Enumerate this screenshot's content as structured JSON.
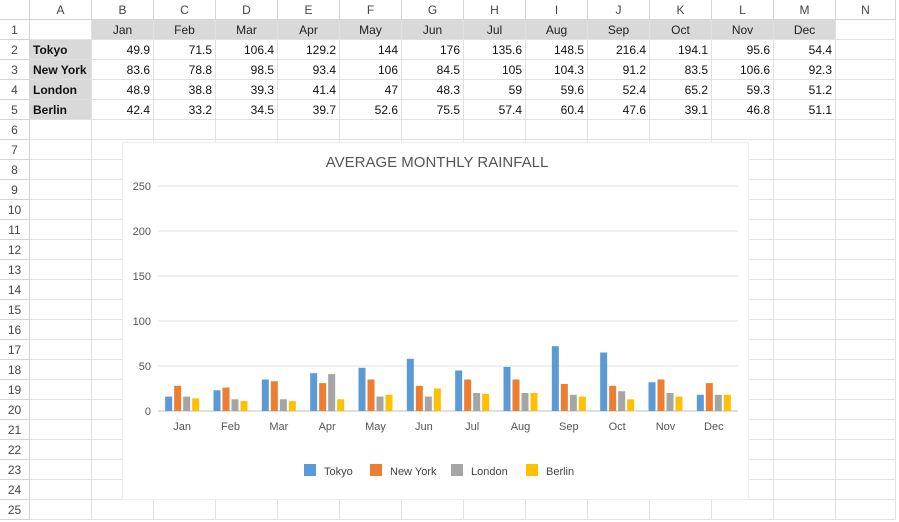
{
  "sheet": {
    "columns": [
      "A",
      "B",
      "C",
      "D",
      "E",
      "F",
      "G",
      "H",
      "I",
      "J",
      "K",
      "L",
      "M",
      "N"
    ],
    "rows": [
      "1",
      "2",
      "3",
      "4",
      "5",
      "6",
      "7",
      "8",
      "9",
      "10",
      "11",
      "12",
      "13",
      "14",
      "15",
      "16",
      "17",
      "18",
      "19",
      "20",
      "21",
      "22",
      "23",
      "24",
      "25"
    ],
    "months": [
      "Jan",
      "Feb",
      "Mar",
      "Apr",
      "May",
      "Jun",
      "Jul",
      "Aug",
      "Sep",
      "Oct",
      "Nov",
      "Dec"
    ],
    "table": [
      {
        "city": "Tokyo",
        "values": [
          "49.9",
          "71.5",
          "106.4",
          "129.2",
          "144",
          "176",
          "135.6",
          "148.5",
          "216.4",
          "194.1",
          "95.6",
          "54.4"
        ]
      },
      {
        "city": "New York",
        "values": [
          "83.6",
          "78.8",
          "98.5",
          "93.4",
          "106",
          "84.5",
          "105",
          "104.3",
          "91.2",
          "83.5",
          "106.6",
          "92.3"
        ]
      },
      {
        "city": "London",
        "values": [
          "48.9",
          "38.8",
          "39.3",
          "41.4",
          "47",
          "48.3",
          "59",
          "59.6",
          "52.4",
          "65.2",
          "59.3",
          "51.2"
        ]
      },
      {
        "city": "Berlin",
        "values": [
          "42.4",
          "33.2",
          "34.5",
          "39.7",
          "52.6",
          "75.5",
          "57.4",
          "60.4",
          "47.6",
          "39.1",
          "46.8",
          "51.1"
        ]
      }
    ]
  },
  "chart_data": {
    "type": "bar",
    "title": "AVERAGE MONTHLY RAINFALL",
    "categories": [
      "Jan",
      "Feb",
      "Mar",
      "Apr",
      "May",
      "Jun",
      "Jul",
      "Aug",
      "Sep",
      "Oct",
      "Nov",
      "Dec"
    ],
    "series": [
      {
        "name": "Tokyo",
        "color": "#5b9bd5",
        "values": [
          16,
          23,
          35,
          42,
          48,
          58,
          45,
          49,
          72,
          65,
          32,
          18
        ]
      },
      {
        "name": "New York",
        "color": "#ed7d31",
        "values": [
          28,
          26,
          33,
          31,
          35,
          28,
          35,
          35,
          30,
          28,
          35,
          31
        ]
      },
      {
        "name": "London",
        "color": "#a5a5a5",
        "values": [
          16,
          13,
          13,
          41,
          16,
          16,
          20,
          20,
          18,
          22,
          20,
          18
        ]
      },
      {
        "name": "Berlin",
        "color": "#ffc000",
        "values": [
          14,
          11,
          11,
          13,
          18,
          25,
          19,
          20,
          16,
          13,
          16,
          18
        ]
      }
    ],
    "yticks": [
      "0",
      "50",
      "100",
      "150",
      "200",
      "250"
    ],
    "ylim": [
      0,
      250
    ],
    "grid": true,
    "legend": "bottom"
  }
}
